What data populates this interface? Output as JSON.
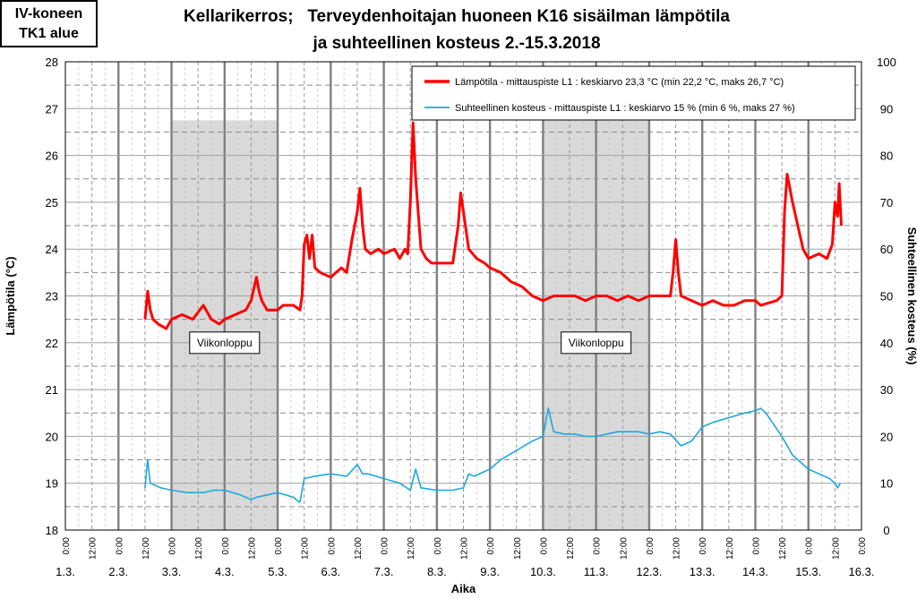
{
  "stamp": {
    "line1": "IV-koneen",
    "line2": "TK1 alue"
  },
  "colors": {
    "temperature": "#ff0000",
    "humidity": "#1ea8e0",
    "weekend_shade": "#d9d9d9"
  },
  "chart_data": {
    "type": "line",
    "title_line1": "Kellarikerros;   Terveydenhoitajan huoneen K16 sisäilman lämpötila",
    "title_line2": "ja suhteellinen kosteus 2.-15.3.2018",
    "xlabel": "Aika",
    "ylabel_left": "Lämpötila (°C)",
    "ylabel_right": "Suhteellinen kosteus (%)",
    "ylim_left": [
      18,
      28
    ],
    "ylim_right": [
      0,
      100
    ],
    "xlim_days": [
      1,
      16
    ],
    "yticks_left": [
      18,
      19,
      20,
      21,
      22,
      23,
      24,
      25,
      26,
      27,
      28
    ],
    "yticks_right": [
      0,
      10,
      20,
      30,
      40,
      50,
      60,
      70,
      80,
      90,
      100
    ],
    "date_labels": [
      "1.3.",
      "2.3.",
      "3.3.",
      "4.3.",
      "5.3.",
      "6.3.",
      "7.3.",
      "8.3.",
      "9.3.",
      "10.3.",
      "11.3.",
      "12.3.",
      "13.3.",
      "14.3.",
      "15.3.",
      "16.3."
    ],
    "time_labels": [
      "0:00",
      "12:00"
    ],
    "grid": true,
    "legend_position": "top-right",
    "weekends": [
      [
        3.0,
        5.0
      ],
      [
        10.0,
        12.0
      ]
    ],
    "annotations": [
      {
        "text": "Viikonloppu",
        "x": 4.0,
        "y": 22.0
      },
      {
        "text": "Viikonloppu",
        "x": 11.0,
        "y": 22.0
      }
    ],
    "series": [
      {
        "name": "Lämpötila - mittauspiste L1 : keskiarvo 23,3 °C (min 22,2 °C, maks 26,7 °C)",
        "axis": "left",
        "x": [
          2.5,
          2.55,
          2.6,
          2.65,
          2.75,
          2.9,
          3.0,
          3.2,
          3.4,
          3.6,
          3.75,
          3.9,
          4.0,
          4.2,
          4.4,
          4.5,
          4.6,
          4.65,
          4.7,
          4.8,
          5.0,
          5.1,
          5.3,
          5.42,
          5.46,
          5.5,
          5.55,
          5.6,
          5.65,
          5.7,
          5.8,
          6.0,
          6.1,
          6.2,
          6.3,
          6.4,
          6.5,
          6.55,
          6.6,
          6.65,
          6.75,
          6.9,
          7.0,
          7.2,
          7.3,
          7.4,
          7.45,
          7.5,
          7.55,
          7.6,
          7.7,
          7.8,
          7.9,
          8.1,
          8.3,
          8.4,
          8.45,
          8.5,
          8.6,
          8.75,
          8.9,
          9.0,
          9.2,
          9.4,
          9.6,
          9.8,
          10.0,
          10.2,
          10.4,
          10.6,
          10.8,
          11.0,
          11.2,
          11.4,
          11.6,
          11.8,
          12.0,
          12.2,
          12.4,
          12.45,
          12.5,
          12.55,
          12.6,
          12.8,
          13.0,
          13.2,
          13.4,
          13.6,
          13.8,
          14.0,
          14.1,
          14.4,
          14.5,
          14.55,
          14.6,
          14.7,
          14.8,
          14.9,
          15.0,
          15.2,
          15.35,
          15.45,
          15.5,
          15.55,
          15.58,
          15.62
        ],
        "values": [
          22.5,
          23.1,
          22.7,
          22.5,
          22.4,
          22.3,
          22.5,
          22.6,
          22.5,
          22.8,
          22.5,
          22.4,
          22.5,
          22.6,
          22.7,
          22.9,
          23.4,
          23.1,
          22.9,
          22.7,
          22.7,
          22.8,
          22.8,
          22.7,
          23.0,
          24.1,
          24.3,
          23.8,
          24.3,
          23.6,
          23.5,
          23.4,
          23.5,
          23.6,
          23.5,
          24.2,
          24.8,
          25.3,
          24.5,
          24.0,
          23.9,
          24.0,
          23.9,
          24.0,
          23.8,
          24.0,
          23.9,
          25.0,
          26.7,
          25.5,
          24.0,
          23.8,
          23.7,
          23.7,
          23.7,
          24.5,
          25.2,
          24.8,
          24.0,
          23.8,
          23.7,
          23.6,
          23.5,
          23.3,
          23.2,
          23.0,
          22.9,
          23.0,
          23.0,
          23.0,
          22.9,
          23.0,
          23.0,
          22.9,
          23.0,
          22.9,
          23.0,
          23.0,
          23.0,
          23.5,
          24.2,
          23.5,
          23.0,
          22.9,
          22.8,
          22.9,
          22.8,
          22.8,
          22.9,
          22.9,
          22.8,
          22.9,
          23.0,
          24.8,
          25.6,
          25.0,
          24.5,
          24.0,
          23.8,
          23.9,
          23.8,
          24.1,
          25.0,
          24.7,
          25.4,
          24.5
        ]
      },
      {
        "name": "Suhteellinen kosteus - mittauspiste L1 : keskiarvo 15 % (min 6 %, maks 27 %)",
        "axis": "right",
        "x": [
          2.5,
          2.55,
          2.6,
          2.8,
          3.0,
          3.3,
          3.6,
          3.8,
          4.0,
          4.3,
          4.5,
          4.6,
          4.8,
          5.0,
          5.3,
          5.4,
          5.42,
          5.5,
          5.7,
          6.0,
          6.3,
          6.5,
          6.6,
          6.7,
          7.0,
          7.3,
          7.5,
          7.6,
          7.7,
          8.0,
          8.3,
          8.5,
          8.6,
          8.7,
          9.0,
          9.2,
          9.5,
          9.8,
          10.0,
          10.1,
          10.2,
          10.4,
          10.6,
          10.8,
          11.0,
          11.2,
          11.4,
          11.6,
          11.8,
          12.0,
          12.2,
          12.4,
          12.6,
          12.8,
          13.0,
          13.2,
          13.5,
          13.8,
          14.0,
          14.1,
          14.2,
          14.5,
          14.7,
          15.0,
          15.2,
          15.4,
          15.5,
          15.55,
          15.6
        ],
        "values": [
          9,
          15,
          10,
          9,
          8.5,
          8,
          8,
          8.5,
          8.5,
          7.5,
          6.5,
          7,
          7.5,
          8,
          7,
          6,
          6,
          11,
          11.5,
          12,
          11.5,
          14,
          12,
          12,
          11,
          10,
          8.5,
          13,
          9,
          8.5,
          8.5,
          9,
          12,
          11.5,
          13,
          15,
          17,
          19,
          20,
          26,
          21,
          20.5,
          20.5,
          20,
          20,
          20.5,
          21,
          21,
          21,
          20.5,
          21,
          20.5,
          18,
          19,
          22,
          23,
          24,
          25,
          25.5,
          26,
          25,
          20,
          16,
          13,
          12,
          11,
          10,
          9,
          10
        ]
      }
    ]
  }
}
